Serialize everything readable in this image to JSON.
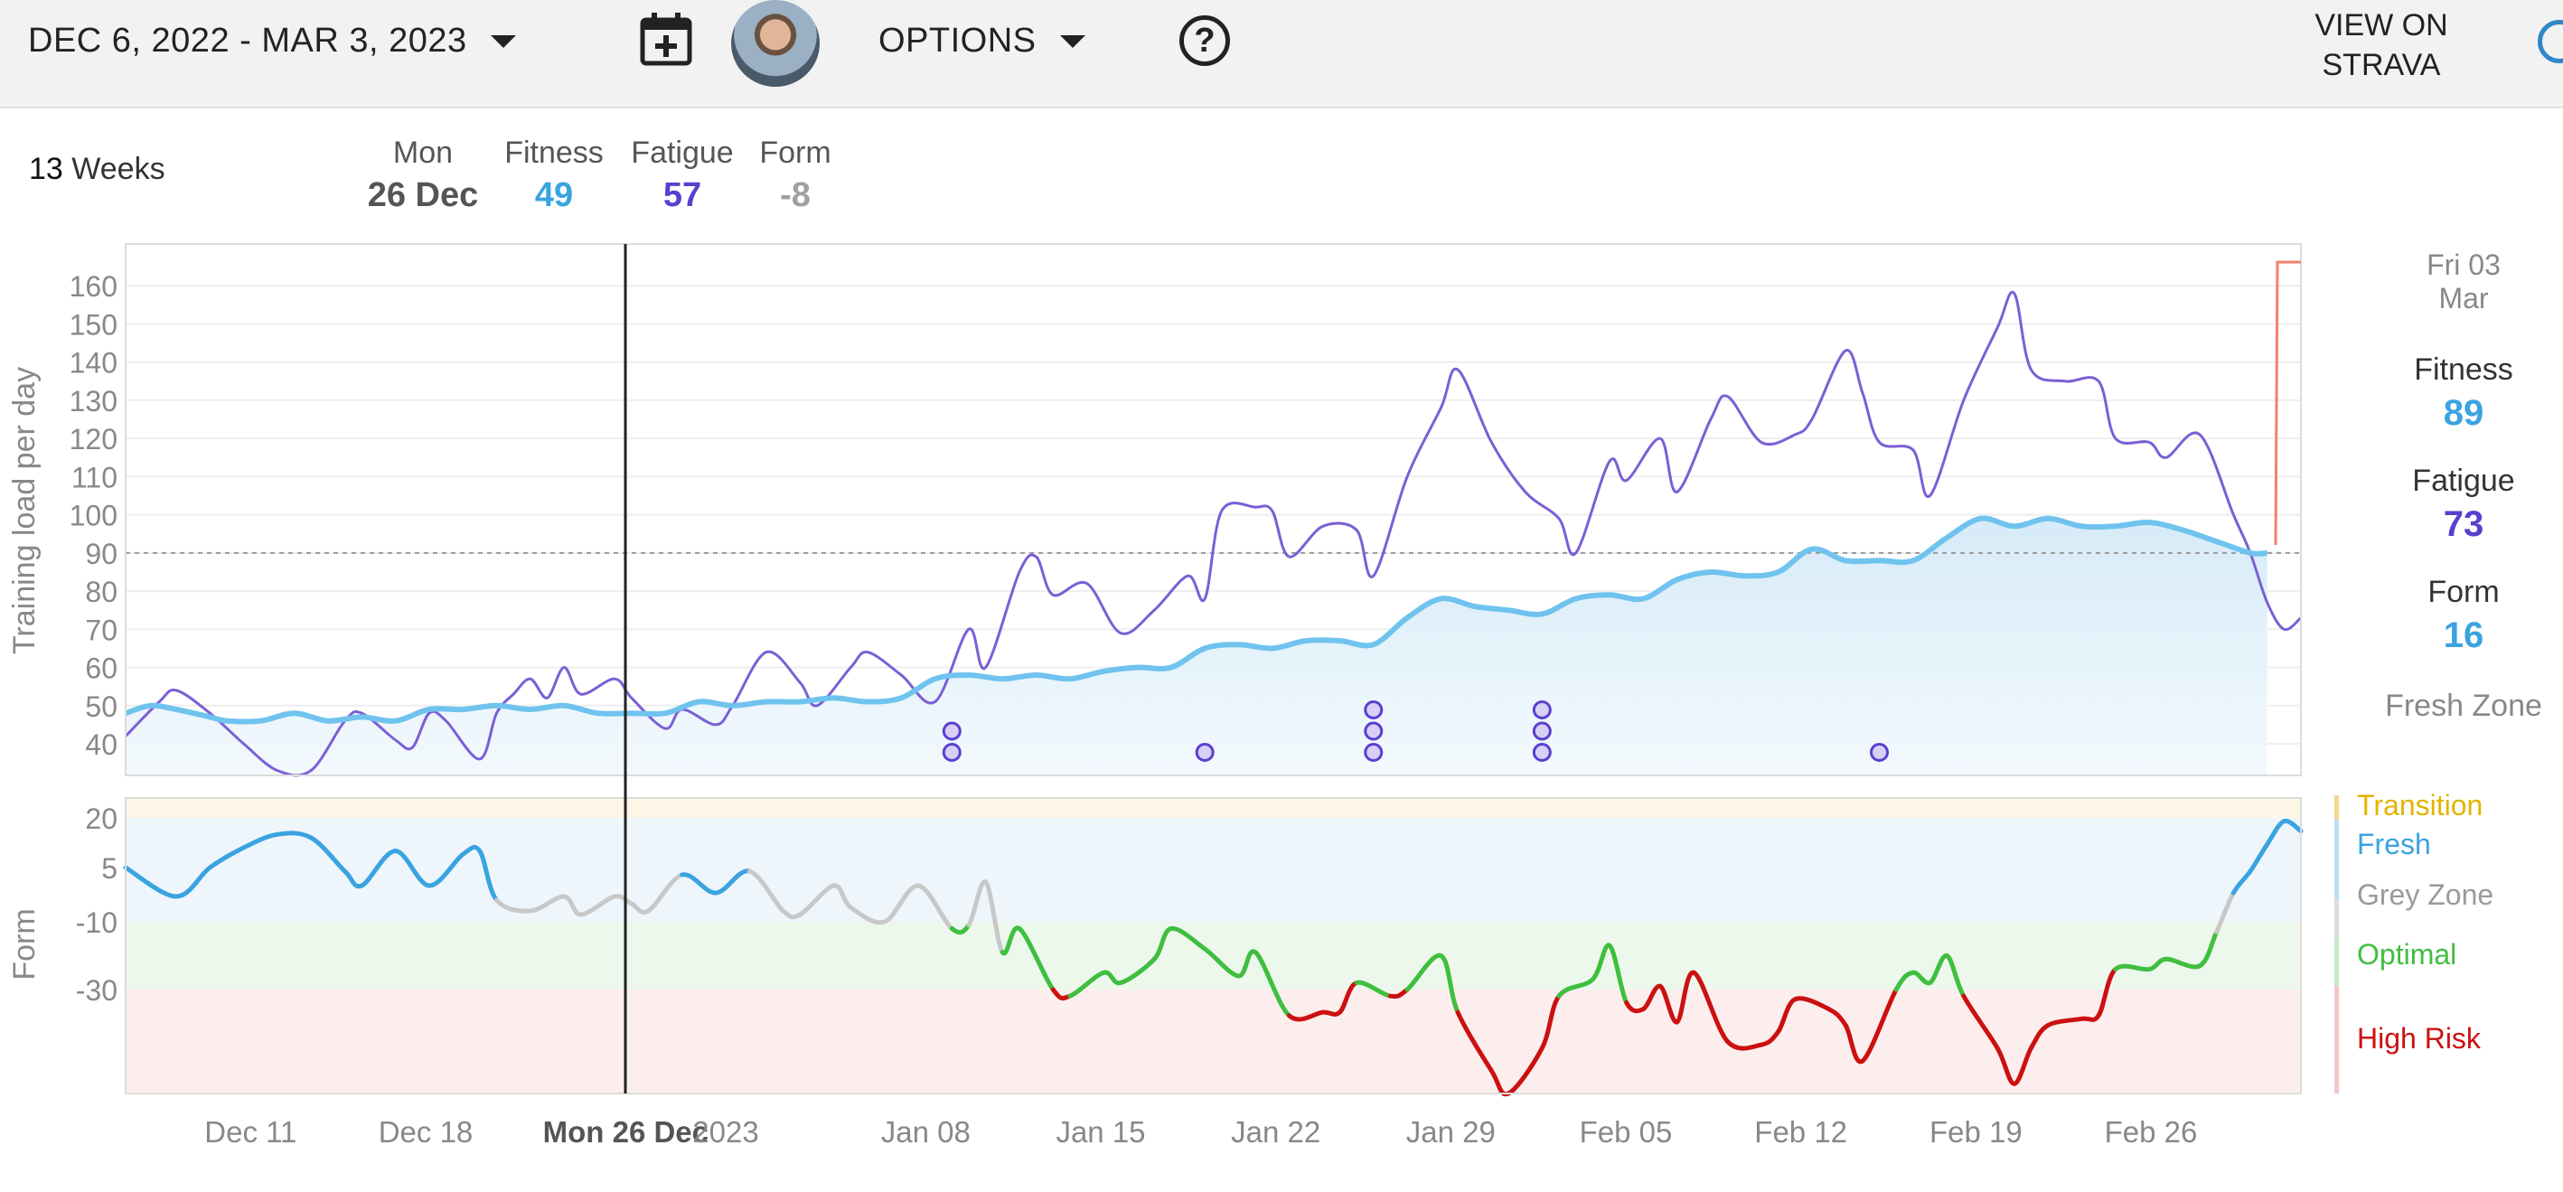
{
  "toolbar": {
    "date_range": "DEC 6, 2022 - MAR 3, 2023",
    "options_label": "OPTIONS",
    "help_symbol": "?",
    "view_strava_line1": "VIEW ON",
    "view_strava_line2": "STRAVA"
  },
  "summary": {
    "weeks_count": "13",
    "weeks_label": "Weeks",
    "day_name": "Mon",
    "date": "26 Dec",
    "fitness_label": "Fitness",
    "fitness_value": "49",
    "fatigue_label": "Fatigue",
    "fatigue_value": "57",
    "form_label": "Form",
    "form_value": "-8"
  },
  "side_panel": {
    "date_line1": "Fri 03",
    "date_line2": "Mar",
    "fitness_label": "Fitness",
    "fitness_value": "89",
    "fatigue_label": "Fatigue",
    "fatigue_value": "73",
    "form_label": "Form",
    "form_value": "16",
    "zone": "Fresh Zone"
  },
  "colors": {
    "fitness": "#2fa4e0",
    "fatigue": "#5a3fcf",
    "form_negative": "#9a9a9a",
    "transition": "#e3b400",
    "fresh": "#3aa3e0",
    "grey": "#9a9a9a",
    "optimal": "#3fbf3f",
    "high_risk": "#cc1010"
  },
  "chart_data": {
    "type": "line",
    "ylabel_top": "Training load per day",
    "ylabel_bottom": "Form",
    "yticks_top": [
      40,
      50,
      60,
      70,
      80,
      90,
      100,
      110,
      120,
      130,
      140,
      150,
      160
    ],
    "yticks_bottom": [
      "20",
      "5",
      "-10",
      "-30"
    ],
    "xticks": [
      "Dec 11",
      "Dec 18",
      "Mon 26 Dec",
      "2023",
      "Jan 08",
      "Jan 15",
      "Jan 22",
      "Jan 29",
      "Feb 05",
      "Feb 12",
      "Feb 19",
      "Feb 26"
    ],
    "cursor_label": "Mon 26 Dec",
    "reference_line": 90,
    "series": [
      {
        "name": "Fitness",
        "points": [
          [
            0,
            48
          ],
          [
            1.5,
            50
          ],
          [
            3,
            49
          ],
          [
            5,
            47
          ],
          [
            6,
            46
          ],
          [
            8,
            46
          ],
          [
            10,
            48
          ],
          [
            12,
            46
          ],
          [
            14,
            47
          ],
          [
            16,
            46
          ],
          [
            18,
            49
          ],
          [
            20,
            49
          ],
          [
            22,
            50
          ],
          [
            24,
            49
          ],
          [
            26,
            50
          ],
          [
            28,
            48
          ],
          [
            30,
            48
          ],
          [
            32,
            48
          ],
          [
            34,
            51
          ],
          [
            36,
            50
          ],
          [
            38,
            51
          ],
          [
            40,
            51
          ],
          [
            42,
            52
          ],
          [
            44,
            51
          ],
          [
            46,
            52
          ],
          [
            48,
            57
          ],
          [
            50,
            58
          ],
          [
            52,
            57
          ],
          [
            54,
            58
          ],
          [
            56,
            57
          ],
          [
            58,
            59
          ],
          [
            60,
            60
          ],
          [
            62,
            60
          ],
          [
            64,
            65
          ],
          [
            66,
            66
          ],
          [
            68,
            65
          ],
          [
            70,
            67
          ],
          [
            72,
            67
          ],
          [
            74,
            66
          ],
          [
            76,
            73
          ],
          [
            78,
            78
          ],
          [
            80,
            76
          ],
          [
            82,
            75
          ],
          [
            84,
            74
          ],
          [
            86,
            78
          ],
          [
            88,
            79
          ],
          [
            90,
            78
          ],
          [
            92,
            83
          ],
          [
            94,
            85
          ],
          [
            96,
            84
          ],
          [
            98,
            85
          ],
          [
            100,
            91
          ],
          [
            102,
            88
          ],
          [
            104,
            88
          ],
          [
            106,
            88
          ],
          [
            108,
            94
          ],
          [
            110,
            99
          ],
          [
            112,
            97
          ],
          [
            114,
            99
          ],
          [
            116,
            97
          ],
          [
            118,
            97
          ],
          [
            120,
            98
          ],
          [
            122,
            96
          ],
          [
            124,
            93
          ],
          [
            126,
            90
          ],
          [
            127,
            90
          ]
        ]
      },
      {
        "name": "Fatigue",
        "points": [
          [
            0,
            42
          ],
          [
            2,
            51
          ],
          [
            3,
            54
          ],
          [
            5,
            48
          ],
          [
            7,
            40
          ],
          [
            9,
            33
          ],
          [
            11,
            33
          ],
          [
            13,
            46
          ],
          [
            14,
            48
          ],
          [
            16,
            41
          ],
          [
            17,
            39
          ],
          [
            18,
            48
          ],
          [
            19,
            46
          ],
          [
            21,
            36
          ],
          [
            22,
            48
          ],
          [
            23,
            53
          ],
          [
            24,
            57
          ],
          [
            25,
            52
          ],
          [
            26,
            60
          ],
          [
            27,
            53
          ],
          [
            29,
            57
          ],
          [
            30,
            52
          ],
          [
            32,
            44
          ],
          [
            33,
            49
          ],
          [
            35,
            45
          ],
          [
            36,
            50
          ],
          [
            38,
            64
          ],
          [
            40,
            56
          ],
          [
            41,
            50
          ],
          [
            43,
            60
          ],
          [
            44,
            64
          ],
          [
            46,
            58
          ],
          [
            48,
            51
          ],
          [
            50,
            70
          ],
          [
            51,
            60
          ],
          [
            53,
            85
          ],
          [
            54,
            89
          ],
          [
            55,
            79
          ],
          [
            57,
            82
          ],
          [
            59,
            69
          ],
          [
            61,
            75
          ],
          [
            63,
            84
          ],
          [
            64,
            78
          ],
          [
            65,
            101
          ],
          [
            67,
            102
          ],
          [
            68,
            101
          ],
          [
            69,
            89
          ],
          [
            71,
            97
          ],
          [
            73,
            96
          ],
          [
            74,
            84
          ],
          [
            76,
            110
          ],
          [
            78,
            128
          ],
          [
            79,
            138
          ],
          [
            81,
            119
          ],
          [
            83,
            106
          ],
          [
            85,
            99
          ],
          [
            86,
            90
          ],
          [
            88,
            114
          ],
          [
            89,
            109
          ],
          [
            91,
            120
          ],
          [
            92,
            106
          ],
          [
            94,
            125
          ],
          [
            95,
            131
          ],
          [
            97,
            119
          ],
          [
            99,
            121
          ],
          [
            100,
            125
          ],
          [
            102,
            143
          ],
          [
            103,
            132
          ],
          [
            104,
            119
          ],
          [
            106,
            117
          ],
          [
            107,
            105
          ],
          [
            109,
            130
          ],
          [
            111,
            149
          ],
          [
            112,
            158
          ],
          [
            113,
            138
          ],
          [
            115,
            135
          ],
          [
            117,
            135
          ],
          [
            118,
            120
          ],
          [
            120,
            119
          ],
          [
            121,
            115
          ],
          [
            123,
            121
          ],
          [
            125,
            100
          ],
          [
            126,
            90
          ],
          [
            127,
            77
          ],
          [
            128,
            70
          ],
          [
            129,
            73
          ]
        ]
      },
      {
        "name": "Form",
        "points": [
          [
            0,
            5
          ],
          [
            3,
            -3
          ],
          [
            5,
            5
          ],
          [
            7,
            11
          ],
          [
            9,
            15
          ],
          [
            11,
            14
          ],
          [
            13,
            4
          ],
          [
            14,
            0
          ],
          [
            16,
            10
          ],
          [
            18,
            0
          ],
          [
            20,
            9
          ],
          [
            21,
            10
          ],
          [
            22,
            -4
          ],
          [
            24,
            -7
          ],
          [
            26,
            -3
          ],
          [
            27,
            -8
          ],
          [
            29,
            -3
          ],
          [
            30,
            -5
          ],
          [
            31,
            -7
          ],
          [
            33,
            3
          ],
          [
            35,
            -2
          ],
          [
            37,
            4
          ],
          [
            39,
            -7
          ],
          [
            40,
            -8
          ],
          [
            42,
            0
          ],
          [
            43,
            -6
          ],
          [
            45,
            -10
          ],
          [
            47,
            0
          ],
          [
            49,
            -12
          ],
          [
            50,
            -11
          ],
          [
            51,
            1
          ],
          [
            52,
            -19
          ],
          [
            53,
            -12
          ],
          [
            55,
            -30
          ],
          [
            56,
            -32
          ],
          [
            58,
            -25
          ],
          [
            59,
            -28
          ],
          [
            61,
            -21
          ],
          [
            62,
            -12
          ],
          [
            64,
            -18
          ],
          [
            66,
            -26
          ],
          [
            67,
            -19
          ],
          [
            69,
            -38
          ],
          [
            71,
            -37
          ],
          [
            72,
            -37
          ],
          [
            73,
            -28
          ],
          [
            75,
            -32
          ],
          [
            76,
            -30
          ],
          [
            78,
            -20
          ],
          [
            79,
            -37
          ],
          [
            81,
            -55
          ],
          [
            82,
            -62
          ],
          [
            84,
            -48
          ],
          [
            85,
            -32
          ],
          [
            87,
            -27
          ],
          [
            88,
            -17
          ],
          [
            89,
            -34
          ],
          [
            90,
            -36
          ],
          [
            91,
            -29
          ],
          [
            92,
            -40
          ],
          [
            93,
            -25
          ],
          [
            95,
            -46
          ],
          [
            97,
            -47
          ],
          [
            98,
            -43
          ],
          [
            99,
            -33
          ],
          [
            101,
            -36
          ],
          [
            102,
            -41
          ],
          [
            103,
            -52
          ],
          [
            105,
            -30
          ],
          [
            106,
            -25
          ],
          [
            107,
            -28
          ],
          [
            108,
            -20
          ],
          [
            109,
            -32
          ],
          [
            111,
            -48
          ],
          [
            112,
            -59
          ],
          [
            113,
            -48
          ],
          [
            114,
            -41
          ],
          [
            116,
            -39
          ],
          [
            117,
            -38
          ],
          [
            118,
            -24
          ],
          [
            120,
            -24
          ],
          [
            121,
            -21
          ],
          [
            123,
            -23
          ],
          [
            124,
            -13
          ],
          [
            125,
            -2
          ],
          [
            126,
            4
          ],
          [
            127,
            12
          ],
          [
            128,
            19
          ],
          [
            129,
            16
          ]
        ]
      }
    ],
    "activity_markers": [
      [
        49,
        1
      ],
      [
        49,
        2
      ],
      [
        64,
        1
      ],
      [
        74,
        1
      ],
      [
        74,
        2
      ],
      [
        74,
        3
      ],
      [
        84,
        1
      ],
      [
        84,
        2
      ],
      [
        84,
        3
      ],
      [
        104,
        1
      ]
    ],
    "form_zones": [
      {
        "name": "Transition",
        "color": "#e3b400"
      },
      {
        "name": "Fresh",
        "color": "#3aa3e0"
      },
      {
        "name": "Grey Zone",
        "color": "#9a9a9a"
      },
      {
        "name": "Optimal",
        "color": "#3fbf3f"
      },
      {
        "name": "High Risk",
        "color": "#cc1010"
      }
    ]
  }
}
